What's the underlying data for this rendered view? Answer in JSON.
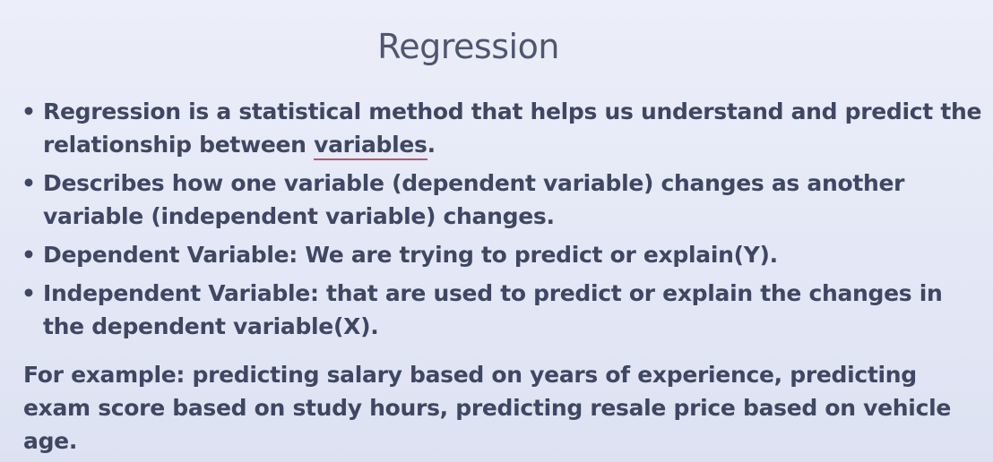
{
  "slide": {
    "title": "Regression",
    "bullets": [
      {
        "text_before": "Regression is a statistical method that helps us understand and predict the relationship between ",
        "underlined": "variables",
        "text_after": "."
      },
      {
        "text": "Describes how one variable (dependent variable) changes as another variable (independent variable) changes."
      },
      {
        "text": "Dependent Variable: We are trying to predict or explain(Y)."
      },
      {
        "text": "Independent Variable: that are used to predict or explain the changes in the dependent variable(X)."
      }
    ],
    "example": "For example: predicting salary based on years of experience, predicting exam score based on study hours, predicting  resale price based on vehicle age.",
    "bullet_glyph": "•",
    "colors": {
      "text": "#3f4763",
      "title": "#4f5670",
      "underline": "#b45a6a",
      "background": "#e6e9f6"
    }
  }
}
